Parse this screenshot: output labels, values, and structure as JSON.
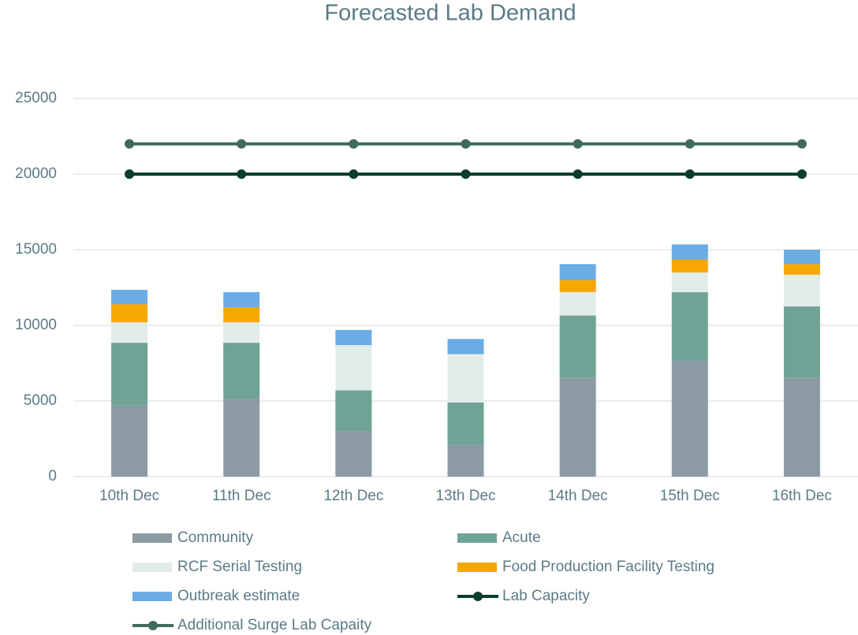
{
  "chart_data": {
    "type": "bar",
    "stacked": true,
    "title": "Forecasted Lab Demand",
    "categories": [
      "10th Dec",
      "11th Dec",
      "12th Dec",
      "13th Dec",
      "14th Dec",
      "15th Dec",
      "16th Dec"
    ],
    "series": [
      {
        "name": "Community",
        "type": "bar",
        "color": "#8b9aa3",
        "values": [
          4700,
          5150,
          3000,
          2100,
          6550,
          7650,
          6550
        ]
      },
      {
        "name": "Acute",
        "type": "bar",
        "color": "#6fa396",
        "values": [
          4150,
          3700,
          2700,
          2800,
          4100,
          4550,
          4700
        ]
      },
      {
        "name": "RCF Serial Testing",
        "type": "bar",
        "color": "#e2ece9",
        "values": [
          1350,
          1350,
          3000,
          3200,
          1550,
          1300,
          2100
        ]
      },
      {
        "name": "Food Production Facility Testing",
        "type": "bar",
        "color": "#f5a800",
        "values": [
          1200,
          1000,
          0,
          0,
          800,
          850,
          700
        ]
      },
      {
        "name": "Outbreak estimate",
        "type": "bar",
        "color": "#6aace4",
        "values": [
          950,
          1000,
          1000,
          1000,
          1050,
          1000,
          950
        ]
      },
      {
        "name": "Lab Capacity",
        "type": "line",
        "color": "#0b3d2e",
        "values": [
          20000,
          20000,
          20000,
          20000,
          20000,
          20000,
          20000
        ]
      },
      {
        "name": "Additional Surge Lab Capaity",
        "type": "line",
        "color": "#3f6b5e",
        "values": [
          22000,
          22000,
          22000,
          22000,
          22000,
          22000,
          22000
        ]
      }
    ],
    "ylim": [
      0,
      25000
    ],
    "yticks": [
      0,
      5000,
      10000,
      15000,
      20000,
      25000
    ],
    "grid": true,
    "legend": "bottom"
  }
}
